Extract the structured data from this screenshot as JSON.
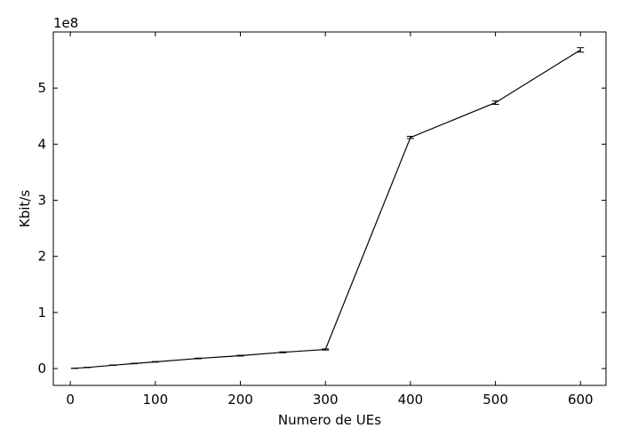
{
  "chart_data": {
    "type": "line",
    "title": "",
    "xlabel": "Numero de UEs",
    "ylabel": "Kbit/s",
    "y_offset_label": "1e8",
    "xlim": [
      -20,
      630
    ],
    "ylim": [
      -0.3,
      6.0
    ],
    "y_scale_note": "values in units of 1e8 Kbit/s",
    "x_ticks": [
      0,
      100,
      200,
      300,
      400,
      500,
      600
    ],
    "x_tick_labels": [
      "0",
      "100",
      "200",
      "300",
      "400",
      "500",
      "600"
    ],
    "y_ticks": [
      0,
      1,
      2,
      3,
      4,
      5
    ],
    "y_tick_labels": [
      "0",
      "1",
      "2",
      "3",
      "4",
      "5"
    ],
    "grid": false,
    "legend": "none",
    "series": [
      {
        "x": [
          5,
          20,
          50,
          75,
          100,
          150,
          200,
          250,
          300,
          400,
          500,
          600
        ],
        "y": [
          0.005,
          0.02,
          0.06,
          0.09,
          0.12,
          0.18,
          0.23,
          0.29,
          0.34,
          4.12,
          4.74,
          5.68
        ],
        "err": [
          0.002,
          0.003,
          0.004,
          0.004,
          0.005,
          0.006,
          0.007,
          0.008,
          0.01,
          0.02,
          0.03,
          0.04
        ],
        "color": "#000000"
      }
    ]
  }
}
